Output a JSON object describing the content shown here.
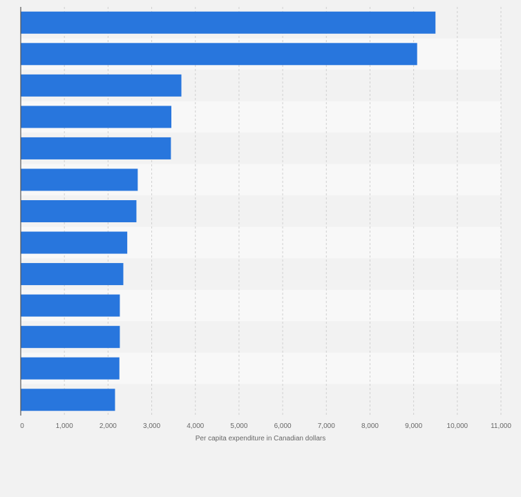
{
  "chart_data": {
    "type": "bar",
    "orientation": "horizontal",
    "categories": [
      "",
      "",
      "",
      "",
      "",
      "",
      "",
      "",
      "",
      "",
      "",
      "",
      ""
    ],
    "values": [
      9500,
      9080,
      3680,
      3450,
      3440,
      2680,
      2650,
      2440,
      2350,
      2270,
      2270,
      2260,
      2160
    ],
    "xlabel": "Per capita expenditure in Canadian dollars",
    "ylabel": "",
    "xlim": [
      0,
      11000
    ],
    "ticks": [
      0,
      1000,
      2000,
      3000,
      4000,
      5000,
      6000,
      7000,
      8000,
      9000,
      10000,
      11000
    ],
    "tick_labels": [
      "0",
      "1,000",
      "2,000",
      "3,000",
      "4,000",
      "5,000",
      "6,000",
      "7,000",
      "8,000",
      "9,000",
      "10,000",
      "11,000"
    ],
    "grid": true,
    "bar_color": "#2876dd"
  }
}
